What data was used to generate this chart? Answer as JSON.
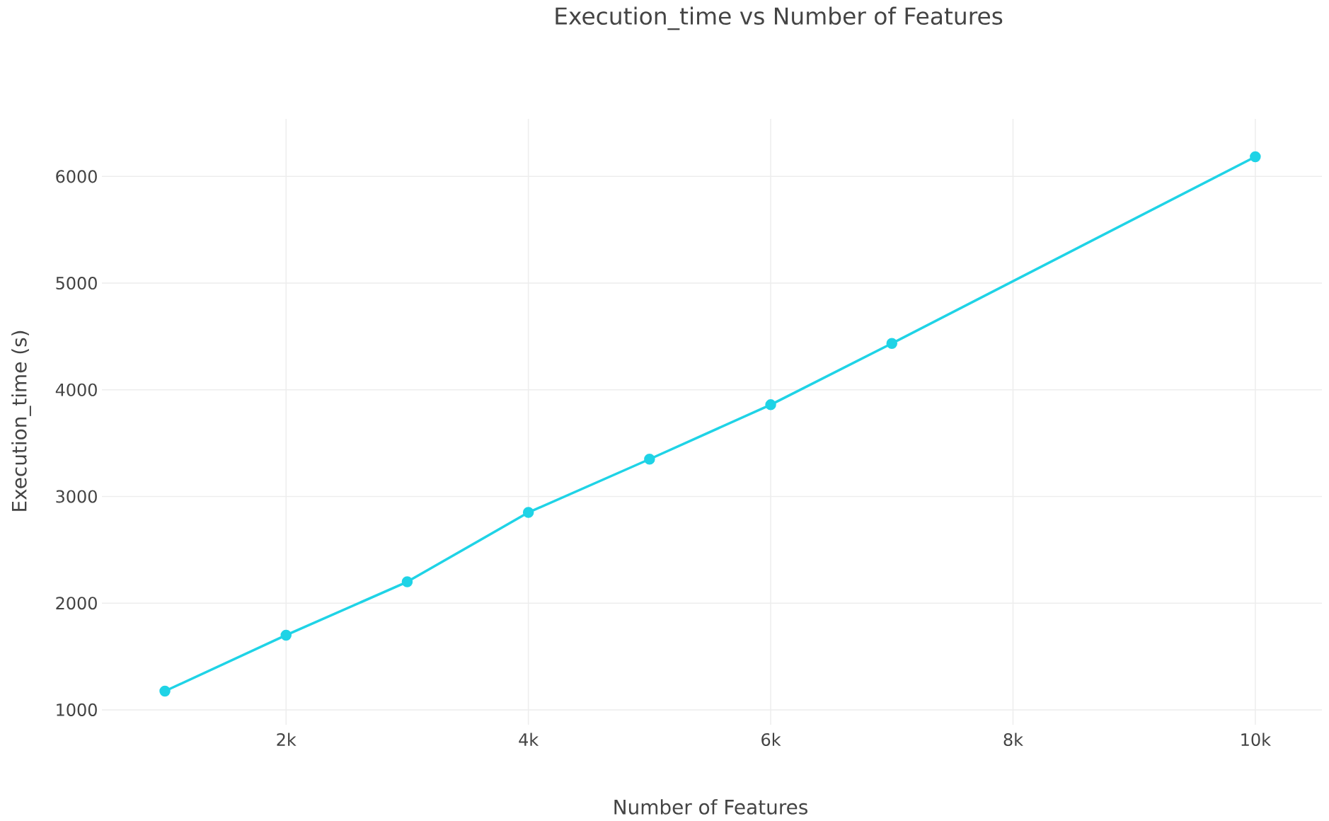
{
  "chart_data": {
    "type": "line",
    "title": "Execution_time vs Number of Features",
    "xlabel": "Number of Features",
    "ylabel": "Execution_time (s)",
    "x": [
      1000,
      2000,
      3000,
      4000,
      5000,
      6000,
      7000,
      10000
    ],
    "series": [
      {
        "color": "#1fd3e6",
        "values": [
          1175,
          1700,
          2200,
          2850,
          3350,
          3860,
          4435,
          6185
        ]
      }
    ],
    "xlim": [
      480,
      10550
    ],
    "ylim": [
      860,
      6540
    ],
    "xticks": [
      {
        "value": 2000,
        "label": "2k"
      },
      {
        "value": 4000,
        "label": "4k"
      },
      {
        "value": 6000,
        "label": "6k"
      },
      {
        "value": 8000,
        "label": "8k"
      },
      {
        "value": 10000,
        "label": "10k"
      }
    ],
    "yticks": [
      1000,
      2000,
      3000,
      4000,
      5000,
      6000
    ],
    "grid": true,
    "marker": "circle",
    "line_style": "solid"
  }
}
